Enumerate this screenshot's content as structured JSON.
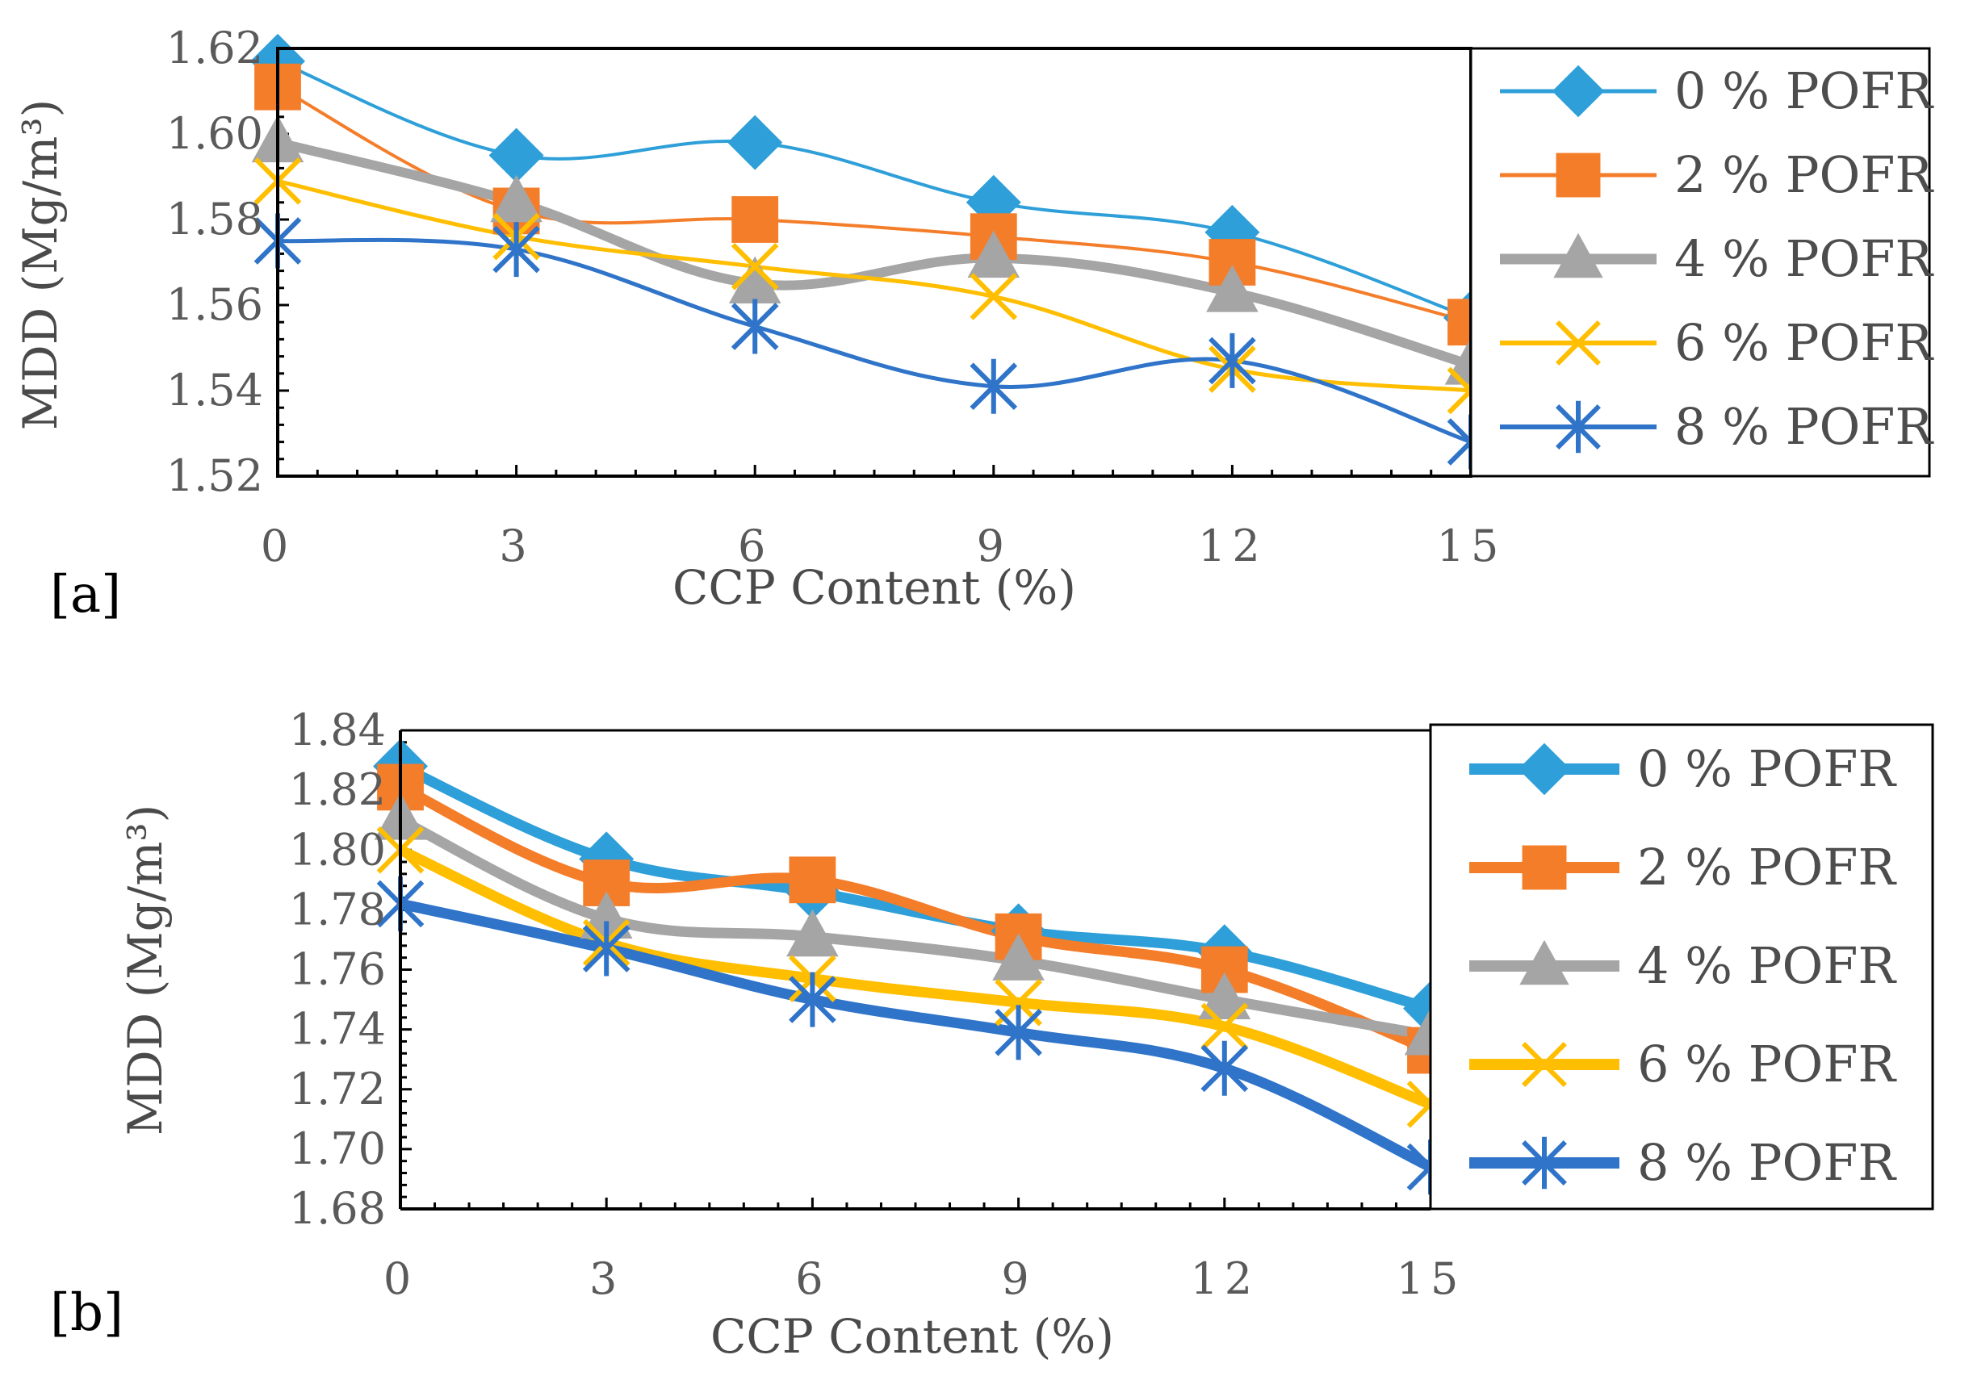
{
  "chart_data": [
    {
      "type": "line",
      "panel_label": "[a]",
      "xlabel": "CCP Content (%)",
      "ylabel": "MDD (Mg/m³)",
      "x": [
        0,
        3,
        6,
        9,
        12,
        15
      ],
      "x_tick_labels": [
        "0",
        "3",
        "6",
        "9",
        "12",
        "15"
      ],
      "ylim": [
        1.52,
        1.62
      ],
      "y_tick_labels": [
        "1.52",
        "1.54",
        "1.56",
        "1.58",
        "1.60",
        "1.62"
      ],
      "legend_position": "right",
      "series": [
        {
          "name": "0 % POFR",
          "marker": "diamond",
          "color": "#2e9fd8",
          "values": [
            1.617,
            1.595,
            1.598,
            1.584,
            1.577,
            1.557
          ]
        },
        {
          "name": "2 % POFR",
          "marker": "square",
          "color": "#f47d2a",
          "values": [
            1.611,
            1.582,
            1.58,
            1.576,
            1.57,
            1.556
          ]
        },
        {
          "name": "4 % POFR",
          "marker": "triangle",
          "color": "#a5a5a5",
          "values": [
            1.598,
            1.584,
            1.565,
            1.571,
            1.563,
            1.546
          ]
        },
        {
          "name": "6 % POFR",
          "marker": "x",
          "color": "#ffbe00",
          "values": [
            1.589,
            1.576,
            1.569,
            1.562,
            1.545,
            1.54
          ]
        },
        {
          "name": "8 % POFR",
          "marker": "star",
          "color": "#2f74c9",
          "values": [
            1.575,
            1.573,
            1.555,
            1.541,
            1.547,
            1.528
          ]
        }
      ]
    },
    {
      "type": "line",
      "panel_label": "[b]",
      "xlabel": "CCP Content (%)",
      "ylabel": "MDD (Mg/m³)",
      "x": [
        0,
        3,
        6,
        9,
        12,
        15
      ],
      "x_tick_labels": [
        "0",
        "3",
        "6",
        "9",
        "12",
        "15"
      ],
      "ylim": [
        1.68,
        1.84
      ],
      "y_tick_labels": [
        "1.68",
        "1.70",
        "1.72",
        "1.74",
        "1.76",
        "1.78",
        "1.80",
        "1.82",
        "1.84"
      ],
      "legend_position": "right",
      "series": [
        {
          "name": "0 % POFR",
          "marker": "diamond",
          "color": "#2e9fd8",
          "values": [
            1.828,
            1.797,
            1.786,
            1.773,
            1.766,
            1.747
          ]
        },
        {
          "name": "2 % POFR",
          "marker": "square",
          "color": "#f47d2a",
          "values": [
            1.821,
            1.789,
            1.79,
            1.771,
            1.76,
            1.733
          ]
        },
        {
          "name": "4 % POFR",
          "marker": "triangle",
          "color": "#a5a5a5",
          "values": [
            1.81,
            1.777,
            1.771,
            1.763,
            1.75,
            1.738
          ]
        },
        {
          "name": "6 % POFR",
          "marker": "x",
          "color": "#ffbe00",
          "values": [
            1.8,
            1.769,
            1.757,
            1.749,
            1.741,
            1.715
          ]
        },
        {
          "name": "8 % POFR",
          "marker": "star",
          "color": "#2f74c9",
          "values": [
            1.782,
            1.767,
            1.75,
            1.739,
            1.727,
            1.694
          ]
        }
      ]
    }
  ]
}
